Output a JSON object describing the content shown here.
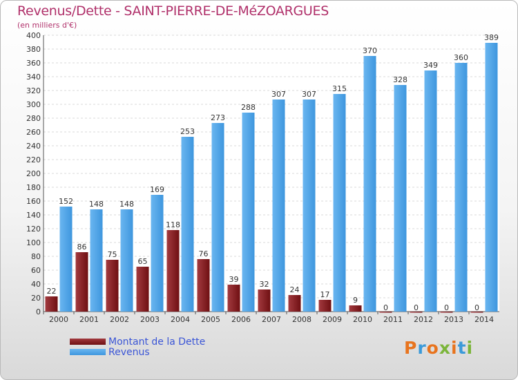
{
  "header": {
    "title": "Revenus/Dette - SAINT-PIERRE-DE-MéZOARGUES",
    "subtitle": "(en milliers d'€)"
  },
  "legend": {
    "debt_label": "Montant de la Dette",
    "revenue_label": "Revenus"
  },
  "logo": {
    "text": "Proxiti"
  },
  "colors": {
    "debt": "#6e0f12",
    "debt_light": "#a33a3f",
    "revenue": "#3e96de",
    "revenue_light": "#6ab6f0",
    "title": "#b0306a",
    "legend_text": "#3a55d6"
  },
  "chart_data": {
    "type": "bar",
    "categories": [
      "2000",
      "2001",
      "2002",
      "2003",
      "2004",
      "2005",
      "2006",
      "2007",
      "2008",
      "2009",
      "2010",
      "2011",
      "2012",
      "2013",
      "2014"
    ],
    "series": [
      {
        "name": "Montant de la Dette",
        "values": [
          22,
          86,
          75,
          65,
          118,
          76,
          39,
          32,
          24,
          17,
          9,
          0,
          0,
          0,
          0
        ]
      },
      {
        "name": "Revenus",
        "values": [
          152,
          148,
          148,
          169,
          253,
          273,
          288,
          307,
          307,
          315,
          370,
          328,
          349,
          360,
          389
        ]
      }
    ],
    "ylim": [
      0,
      400
    ],
    "ytick_step": 20,
    "grid": true,
    "legend_position": "bottom-left"
  }
}
